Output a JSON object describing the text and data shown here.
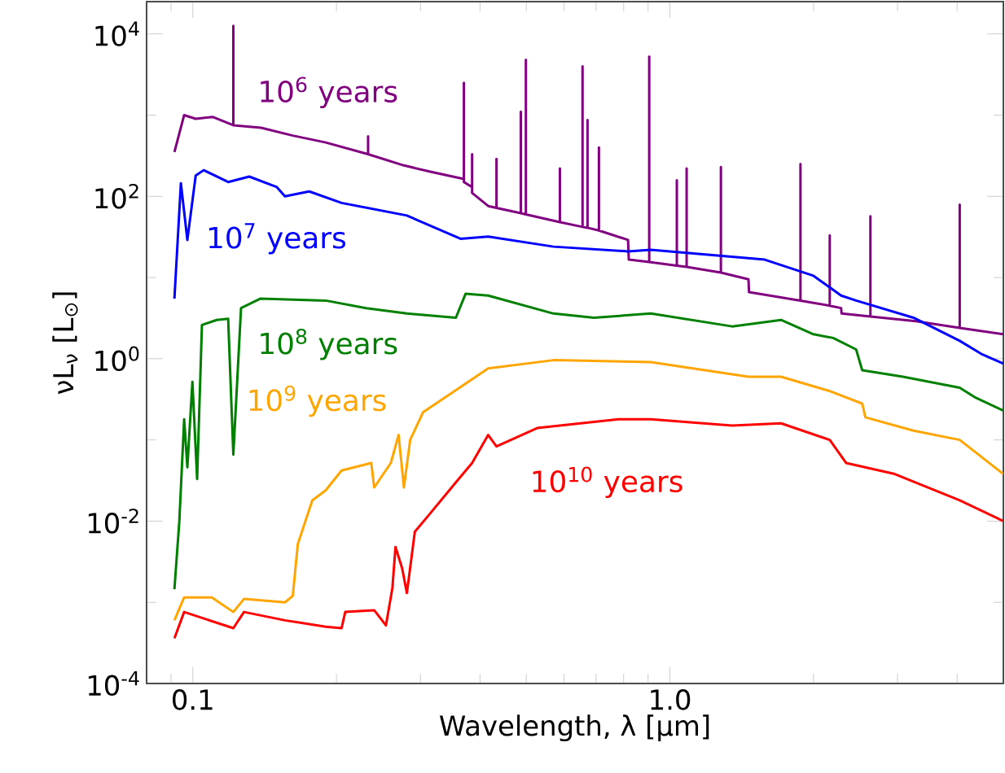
{
  "chart_data": {
    "type": "line",
    "log": "xy",
    "xlabel": "Wavelength, λ [μm]",
    "ylabel": "νL$_{ν}$ [L$_{⊙}$]",
    "xlim": [
      0.08,
      5
    ],
    "ylim": [
      0.0001,
      25000
    ],
    "xticks": [
      {
        "value": 0.09,
        "label": null
      },
      0.1,
      {
        "value": 0.2,
        "label": null
      },
      {
        "value": 0.3,
        "label": null
      },
      {
        "value": 0.4,
        "label": null
      },
      {
        "value": 0.5,
        "label": null
      },
      {
        "value": 0.6,
        "label": null
      },
      {
        "value": 0.7,
        "label": null
      },
      {
        "value": 0.8,
        "label": null
      },
      {
        "value": 0.9,
        "label": null
      },
      {
        "value": 1,
        "label": "1.0"
      },
      {
        "value": 2,
        "label": null
      },
      {
        "value": 3,
        "label": null
      },
      {
        "value": 4,
        "label": null
      }
    ],
    "yticks": [
      {
        "value": 0.0001,
        "label": "10$^{-4}$"
      },
      {
        "value": 0.001,
        "label": null
      },
      {
        "value": 0.01,
        "label": "10$^{-2}$"
      },
      {
        "value": 0.1,
        "label": null
      },
      {
        "value": 1,
        "label": "10$^{0}$"
      },
      {
        "value": 10,
        "label": null
      },
      {
        "value": 100,
        "label": "10$^{2}$"
      },
      {
        "value": 1000,
        "label": null
      },
      {
        "value": 10000,
        "label": "10$^{4}$"
      }
    ],
    "legend": false,
    "marker": "none",
    "line_style": "solid",
    "series": [
      {
        "name": "10$^{6}$ years",
        "color": "#800080",
        "x": [
          0.0915,
          0.0959,
          0.1014,
          0.11,
          0.1216,
          0.1216,
          0.1216,
          0.139,
          0.162,
          0.19,
          0.233,
          0.233,
          0.233,
          0.277,
          0.316,
          0.367,
          0.37,
          0.37,
          0.37,
          0.385,
          0.385,
          0.385,
          0.416,
          0.433,
          0.433,
          0.433,
          0.487,
          0.487,
          0.487,
          0.499,
          0.499,
          0.499,
          0.588,
          0.588,
          0.588,
          0.656,
          0.656,
          0.656,
          0.672,
          0.672,
          0.672,
          0.71,
          0.71,
          0.71,
          0.817,
          0.82,
          0.905,
          0.905,
          0.905,
          1.034,
          1.034,
          1.034,
          1.084,
          1.084,
          1.084,
          1.279,
          1.279,
          1.279,
          1.461,
          1.465,
          1.878,
          1.878,
          1.878,
          2.163,
          2.163,
          2.163,
          2.285,
          2.29,
          2.632,
          2.632,
          2.632,
          3.28,
          4.05,
          4.05,
          4.05,
          5.0
        ],
        "values": [
          350,
          1000,
          900,
          950,
          750,
          12600,
          750,
          700,
          560,
          460,
          330,
          550,
          330,
          240,
          200,
          165,
          165,
          2500,
          150,
          130,
          330,
          110,
          76,
          72,
          290,
          72,
          62,
          1100,
          62,
          60,
          4800,
          60,
          48,
          220,
          48,
          42,
          4000,
          42,
          41,
          870,
          41,
          38,
          400,
          38,
          29,
          16.6,
          15.5,
          5250,
          15.5,
          14,
          158,
          14,
          13.5,
          220,
          13.5,
          11.5,
          230,
          11.5,
          9.5,
          6.6,
          5.2,
          250,
          5.2,
          4.5,
          33,
          4.5,
          4.2,
          3.6,
          3.3,
          57,
          3.3,
          2.9,
          2.4,
          79,
          2.4,
          2.0
        ]
      },
      {
        "name": "10$^{7}$ years",
        "color": "#0000ff",
        "x": [
          0.0915,
          0.0944,
          0.0974,
          0.1014,
          0.1054,
          0.1186,
          0.1313,
          0.15,
          0.156,
          0.1754,
          0.205,
          0.281,
          0.364,
          0.416,
          0.57,
          0.817,
          0.912,
          1.58,
          2.0,
          2.285,
          2.457,
          3.24,
          4.05,
          4.49,
          5.0
        ],
        "values": [
          5.5,
          145,
          29,
          180,
          210,
          150,
          175,
          130,
          100,
          115,
          83,
          58,
          30,
          32,
          24,
          21,
          22,
          16.6,
          10.5,
          6.0,
          5.2,
          3.2,
          1.66,
          1.15,
          0.87
        ]
      },
      {
        "name": "10$^{8}$ years",
        "color": "#008000",
        "x": [
          0.0915,
          0.0937,
          0.0959,
          0.0974,
          0.0998,
          0.1021,
          0.1045,
          0.1122,
          0.1186,
          0.1216,
          0.1262,
          0.1387,
          0.19,
          0.231,
          0.281,
          0.356,
          0.373,
          0.416,
          0.57,
          0.693,
          0.912,
          1.35,
          1.71,
          2.0,
          2.2,
          2.457,
          2.53,
          3.08,
          4.05,
          4.38,
          5.0
        ],
        "values": [
          0.00145,
          0.01,
          0.18,
          0.046,
          0.52,
          0.033,
          2.6,
          3.0,
          3.1,
          0.066,
          4.2,
          5.5,
          5.2,
          4.2,
          3.6,
          3.2,
          6.3,
          6.0,
          3.6,
          3.2,
          3.6,
          2.5,
          3.0,
          2.0,
          1.8,
          1.3,
          0.72,
          0.6,
          0.44,
          0.33,
          0.23
        ]
      },
      {
        "name": "10$^{9}$ years",
        "color": "#ffa500",
        "x": [
          0.0915,
          0.0959,
          0.1096,
          0.1216,
          0.128,
          0.156,
          0.162,
          0.166,
          0.178,
          0.19,
          0.205,
          0.2366,
          0.24,
          0.26,
          0.27,
          0.277,
          0.2855,
          0.304,
          0.356,
          0.416,
          0.57,
          0.912,
          1.461,
          1.71,
          2.163,
          2.53,
          2.569,
          3.24,
          4.05,
          5.0
        ],
        "values": [
          0.0006,
          0.00115,
          0.00115,
          0.00076,
          0.0011,
          0.001,
          0.0012,
          0.0052,
          0.018,
          0.024,
          0.042,
          0.052,
          0.026,
          0.052,
          0.115,
          0.026,
          0.1,
          0.22,
          0.41,
          0.76,
          0.96,
          0.91,
          0.6,
          0.6,
          0.4,
          0.28,
          0.19,
          0.13,
          0.1,
          0.038
        ]
      },
      {
        "name": "10$^{10}$ years",
        "color": "#ff0000",
        "x": [
          0.0915,
          0.0959,
          0.1216,
          0.128,
          0.156,
          0.19,
          0.205,
          0.2087,
          0.24,
          0.254,
          0.262,
          0.266,
          0.2747,
          0.281,
          0.292,
          0.311,
          0.356,
          0.385,
          0.416,
          0.433,
          0.527,
          0.78,
          0.912,
          1.35,
          1.71,
          2.163,
          2.34,
          2.96,
          4.05,
          5.0
        ],
        "values": [
          0.00036,
          0.00076,
          0.00048,
          0.00076,
          0.0006,
          0.0005,
          0.00048,
          0.00076,
          0.0008,
          0.00052,
          0.0015,
          0.0048,
          0.0026,
          0.0013,
          0.0074,
          0.0115,
          0.03,
          0.052,
          0.115,
          0.083,
          0.14,
          0.18,
          0.18,
          0.15,
          0.16,
          0.1,
          0.052,
          0.038,
          0.018,
          0.01
        ]
      }
    ]
  }
}
